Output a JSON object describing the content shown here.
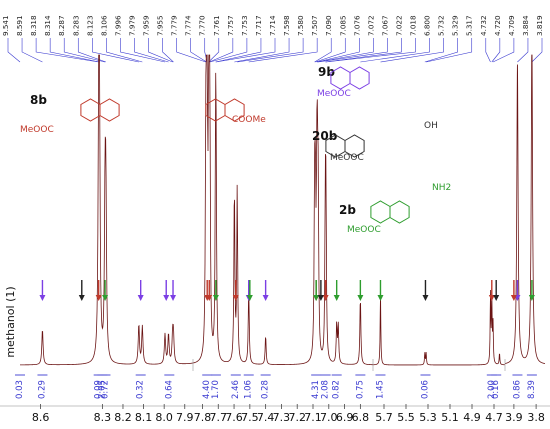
{
  "chart_data": {
    "type": "line",
    "title": "",
    "xlabel": "",
    "ylabel": "methanol (1)",
    "segments": [
      {
        "ticks": [
          "8.6",
          "8.3",
          "8.2",
          "8.1",
          "8.0",
          "7.9"
        ]
      },
      {
        "ticks": [
          "7.8",
          "7.7",
          "7.6",
          "7.5",
          "7.4",
          "7.3",
          "7.2",
          "7.1",
          "7.0",
          "6.9",
          "6.8"
        ]
      },
      {
        "ticks": [
          "5.7",
          "5.5",
          "5.3",
          "5.1",
          "4.9",
          "4.7"
        ]
      },
      {
        "ticks": [
          "3.9",
          "3.8"
        ]
      }
    ],
    "peak_labels": [
      "9.541",
      "8.591",
      "8.318",
      "8.314",
      "8.287",
      "8.283",
      "8.123",
      "8.106",
      "7.996",
      "7.979",
      "7.959",
      "7.955",
      "7.779",
      "7.774",
      "7.770",
      "7.761",
      "7.757",
      "7.753",
      "7.717",
      "7.714",
      "7.598",
      "7.580",
      "7.507",
      "7.090",
      "7.085",
      "7.076",
      "7.072",
      "7.067",
      "7.022",
      "7.018",
      "6.800",
      "5.732",
      "5.329",
      "5.317",
      "4.732",
      "4.720",
      "4.709",
      "3.884",
      "3.819"
    ],
    "integrals": [
      "0.03",
      "0.29",
      "0.09",
      "2.05",
      "0.72",
      "0.32",
      "0.64",
      "4.40",
      "1.70",
      "2.46",
      "1.06",
      "0.28",
      "4.31",
      "2.08",
      "0.82",
      "0.75",
      "1.45",
      "0.06",
      "2.00",
      "0.16",
      "0.86",
      "8.39"
    ],
    "compounds": [
      {
        "label": "8b",
        "color": "#c0392b",
        "groups": [
          "MeOOC",
          "COOMe"
        ]
      },
      {
        "label": "9b",
        "color": "#7b3fe4",
        "groups": [
          "MeOOC"
        ]
      },
      {
        "label": "20b",
        "color": "#333333",
        "groups": [
          "MeOOC",
          "OH"
        ]
      },
      {
        "label": "2b",
        "color": "#2e9d2e",
        "groups": [
          "MeOOC",
          "NH2"
        ]
      }
    ],
    "arrow_colors": {
      "8b": "#c0392b",
      "9b": "#7b3fe4",
      "20b": "#222222",
      "2b": "#2e9d2e",
      "mix": "#8a4b12"
    },
    "spectrum_color": "#6b1414",
    "label_line_color": "#3a3ad0",
    "integral_color": "#3a3ad0"
  }
}
